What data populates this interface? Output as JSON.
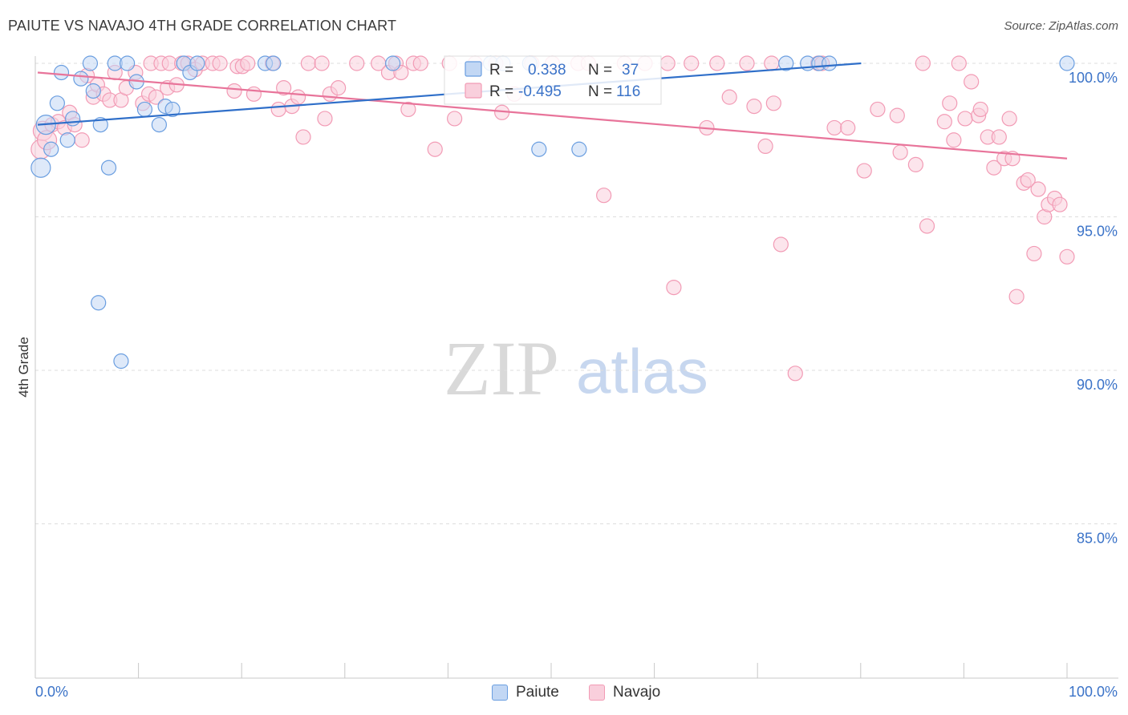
{
  "header": {
    "title": "PAIUTE VS NAVAJO 4TH GRADE CORRELATION CHART",
    "source": "Source: ZipAtlas.com"
  },
  "watermark": {
    "part1": "ZIP",
    "part2": "atlas"
  },
  "legend_box": {
    "rows": [
      {
        "r_label": "R =",
        "r_value": "0.338",
        "n_label": "N =",
        "n_value": "37",
        "series": "Paiute"
      },
      {
        "r_label": "R =",
        "r_value": "-0.495",
        "n_label": "N =",
        "n_value": "116",
        "series": "Navajo"
      }
    ]
  },
  "bottom_legend": {
    "paiute": "Paiute",
    "navajo": "Navajo"
  },
  "chart_data": {
    "type": "scatter",
    "title": "PAIUTE VS NAVAJO 4TH GRADE CORRELATION CHART",
    "xlabel": "",
    "ylabel": "4th Grade",
    "xlim": [
      0,
      100
    ],
    "ylim": [
      80.5,
      100.8
    ],
    "x_tick_labels": [
      "0.0%",
      "100.0%"
    ],
    "y_ticks": [
      {
        "value": 100,
        "label": "100.0%"
      },
      {
        "value": 95,
        "label": "95.0%"
      },
      {
        "value": 90,
        "label": "90.0%"
      },
      {
        "value": 85,
        "label": "85.0%"
      }
    ],
    "colors": {
      "paiute": "#6a9ee0",
      "navajo": "#f29bb5",
      "paiute_line": "#2f6fc9",
      "navajo_line": "#e8749a",
      "tick_text": "#3b73c8"
    },
    "series": [
      {
        "name": "Paiute",
        "R": 0.338,
        "N": 37,
        "trend": {
          "x1": 0.0,
          "y1": 98.0,
          "x2": 80.0,
          "y2": 100.0
        },
        "points": [
          [
            0.3,
            96.6
          ],
          [
            0.8,
            98.0
          ],
          [
            1.3,
            97.2
          ],
          [
            1.9,
            98.7
          ],
          [
            2.3,
            99.7
          ],
          [
            2.9,
            97.5
          ],
          [
            3.4,
            98.2
          ],
          [
            4.2,
            99.5
          ],
          [
            5.1,
            100.0
          ],
          [
            5.4,
            99.1
          ],
          [
            5.9,
            92.2
          ],
          [
            6.1,
            98.0
          ],
          [
            6.9,
            96.6
          ],
          [
            7.5,
            100.0
          ],
          [
            8.1,
            90.3
          ],
          [
            8.7,
            100.0
          ],
          [
            9.6,
            99.4
          ],
          [
            10.4,
            98.5
          ],
          [
            11.8,
            98.0
          ],
          [
            12.4,
            98.6
          ],
          [
            13.1,
            98.5
          ],
          [
            14.2,
            100.0
          ],
          [
            14.8,
            99.7
          ],
          [
            15.5,
            100.0
          ],
          [
            22.1,
            100.0
          ],
          [
            22.9,
            100.0
          ],
          [
            34.5,
            100.0
          ],
          [
            44.0,
            100.0
          ],
          [
            45.2,
            100.0
          ],
          [
            47.8,
            100.0
          ],
          [
            48.7,
            97.2
          ],
          [
            52.6,
            97.2
          ],
          [
            72.7,
            100.0
          ],
          [
            74.8,
            100.0
          ],
          [
            75.9,
            100.0
          ],
          [
            76.9,
            100.0
          ],
          [
            100.0,
            100.0
          ]
        ]
      },
      {
        "name": "Navajo",
        "R": -0.495,
        "N": 116,
        "trend": {
          "x1": 0.0,
          "y1": 99.7,
          "x2": 100.0,
          "y2": 96.9
        },
        "points": [
          [
            0.3,
            97.2
          ],
          [
            0.5,
            97.8
          ],
          [
            0.9,
            97.5
          ],
          [
            1.4,
            98.0
          ],
          [
            2.0,
            98.1
          ],
          [
            2.6,
            97.9
          ],
          [
            3.1,
            98.4
          ],
          [
            3.6,
            98.0
          ],
          [
            4.3,
            97.5
          ],
          [
            4.8,
            99.6
          ],
          [
            5.4,
            98.9
          ],
          [
            5.8,
            99.3
          ],
          [
            6.4,
            99.0
          ],
          [
            7.0,
            98.8
          ],
          [
            7.5,
            99.7
          ],
          [
            8.1,
            98.8
          ],
          [
            8.6,
            99.2
          ],
          [
            9.5,
            99.7
          ],
          [
            10.2,
            98.7
          ],
          [
            10.8,
            99.0
          ],
          [
            11.0,
            100.0
          ],
          [
            11.5,
            98.9
          ],
          [
            12.0,
            100.0
          ],
          [
            12.6,
            99.2
          ],
          [
            12.8,
            100.0
          ],
          [
            13.5,
            99.3
          ],
          [
            14.0,
            100.0
          ],
          [
            14.6,
            100.0
          ],
          [
            15.3,
            99.8
          ],
          [
            16.0,
            100.0
          ],
          [
            17.0,
            100.0
          ],
          [
            17.7,
            100.0
          ],
          [
            19.1,
            99.1
          ],
          [
            19.4,
            99.9
          ],
          [
            19.9,
            99.9
          ],
          [
            20.4,
            100.0
          ],
          [
            21.0,
            99.0
          ],
          [
            22.8,
            100.0
          ],
          [
            23.4,
            98.5
          ],
          [
            23.9,
            99.2
          ],
          [
            24.7,
            98.6
          ],
          [
            25.3,
            98.9
          ],
          [
            25.8,
            97.6
          ],
          [
            26.3,
            100.0
          ],
          [
            27.6,
            100.0
          ],
          [
            27.9,
            98.2
          ],
          [
            28.4,
            99.0
          ],
          [
            29.2,
            99.2
          ],
          [
            31.0,
            100.0
          ],
          [
            33.1,
            100.0
          ],
          [
            34.1,
            99.7
          ],
          [
            34.8,
            100.0
          ],
          [
            35.3,
            99.7
          ],
          [
            36.0,
            98.5
          ],
          [
            36.5,
            100.0
          ],
          [
            37.2,
            100.0
          ],
          [
            38.6,
            97.2
          ],
          [
            40.0,
            100.0
          ],
          [
            40.5,
            98.2
          ],
          [
            42.5,
            100.0
          ],
          [
            44.5,
            100.0
          ],
          [
            45.1,
            98.4
          ],
          [
            46.3,
            99.0
          ],
          [
            48.0,
            100.0
          ],
          [
            50.0,
            100.0
          ],
          [
            52.5,
            100.0
          ],
          [
            53.5,
            100.0
          ],
          [
            55.0,
            95.7
          ],
          [
            57.0,
            100.0
          ],
          [
            59.0,
            100.0
          ],
          [
            61.2,
            100.0
          ],
          [
            61.8,
            92.7
          ],
          [
            63.5,
            100.0
          ],
          [
            65.0,
            97.9
          ],
          [
            66.0,
            100.0
          ],
          [
            67.2,
            98.9
          ],
          [
            68.9,
            100.0
          ],
          [
            69.6,
            98.6
          ],
          [
            70.7,
            97.3
          ],
          [
            71.3,
            100.0
          ],
          [
            71.5,
            98.7
          ],
          [
            72.2,
            94.1
          ],
          [
            73.6,
            89.9
          ],
          [
            75.8,
            100.0
          ],
          [
            76.2,
            100.0
          ],
          [
            77.4,
            97.9
          ],
          [
            78.7,
            97.9
          ],
          [
            80.3,
            96.5
          ],
          [
            81.6,
            98.5
          ],
          [
            83.5,
            98.3
          ],
          [
            83.8,
            97.1
          ],
          [
            85.3,
            96.7
          ],
          [
            86.0,
            100.0
          ],
          [
            86.4,
            94.7
          ],
          [
            88.1,
            98.1
          ],
          [
            88.6,
            98.7
          ],
          [
            89.0,
            97.5
          ],
          [
            89.5,
            100.0
          ],
          [
            90.1,
            98.2
          ],
          [
            90.7,
            99.4
          ],
          [
            91.4,
            98.3
          ],
          [
            91.6,
            98.5
          ],
          [
            92.3,
            97.6
          ],
          [
            92.9,
            96.6
          ],
          [
            93.4,
            97.6
          ],
          [
            93.9,
            96.9
          ],
          [
            94.4,
            98.2
          ],
          [
            94.7,
            96.9
          ],
          [
            95.1,
            92.4
          ],
          [
            95.8,
            96.1
          ],
          [
            96.2,
            96.2
          ],
          [
            96.8,
            93.8
          ],
          [
            97.2,
            95.9
          ],
          [
            97.8,
            95.0
          ],
          [
            98.2,
            95.4
          ],
          [
            98.8,
            95.6
          ],
          [
            99.3,
            95.4
          ],
          [
            100.0,
            93.7
          ]
        ]
      }
    ]
  }
}
